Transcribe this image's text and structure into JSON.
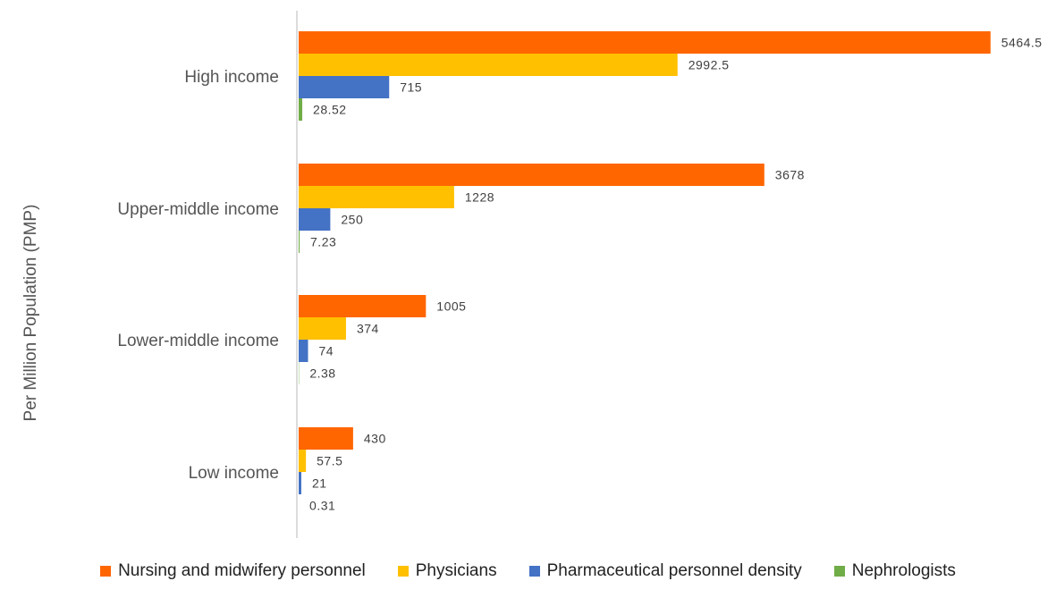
{
  "chart_data": {
    "type": "bar",
    "orientation": "horizontal",
    "ylabel": "Per Million Population (PMP)",
    "categories": [
      "High income",
      "Upper-middle income",
      "Lower-middle income",
      "Low income"
    ],
    "series": [
      {
        "name": "Nursing and midwifery personnel",
        "color": "#FF6600",
        "values": [
          5464.5,
          3678,
          1005,
          430
        ],
        "labels": [
          "5464.5",
          "3678",
          "1005",
          "430"
        ]
      },
      {
        "name": "Physicians",
        "color": "#FFC000",
        "values": [
          2992.5,
          1228,
          374,
          57.5
        ],
        "labels": [
          "2992.5",
          "1228",
          "374",
          "57.5"
        ]
      },
      {
        "name": "Pharmaceutical personnel density",
        "color": "#4472C4",
        "values": [
          715,
          250,
          74,
          21
        ],
        "labels": [
          "715",
          "250",
          "74",
          "21"
        ]
      },
      {
        "name": "Nephrologists",
        "color": "#70AD47",
        "values": [
          28.52,
          7.23,
          2.38,
          0.31
        ],
        "labels": [
          "28.52",
          "7.23",
          "2.38",
          "0.31"
        ]
      }
    ],
    "grid": false,
    "legend": "bottom"
  }
}
